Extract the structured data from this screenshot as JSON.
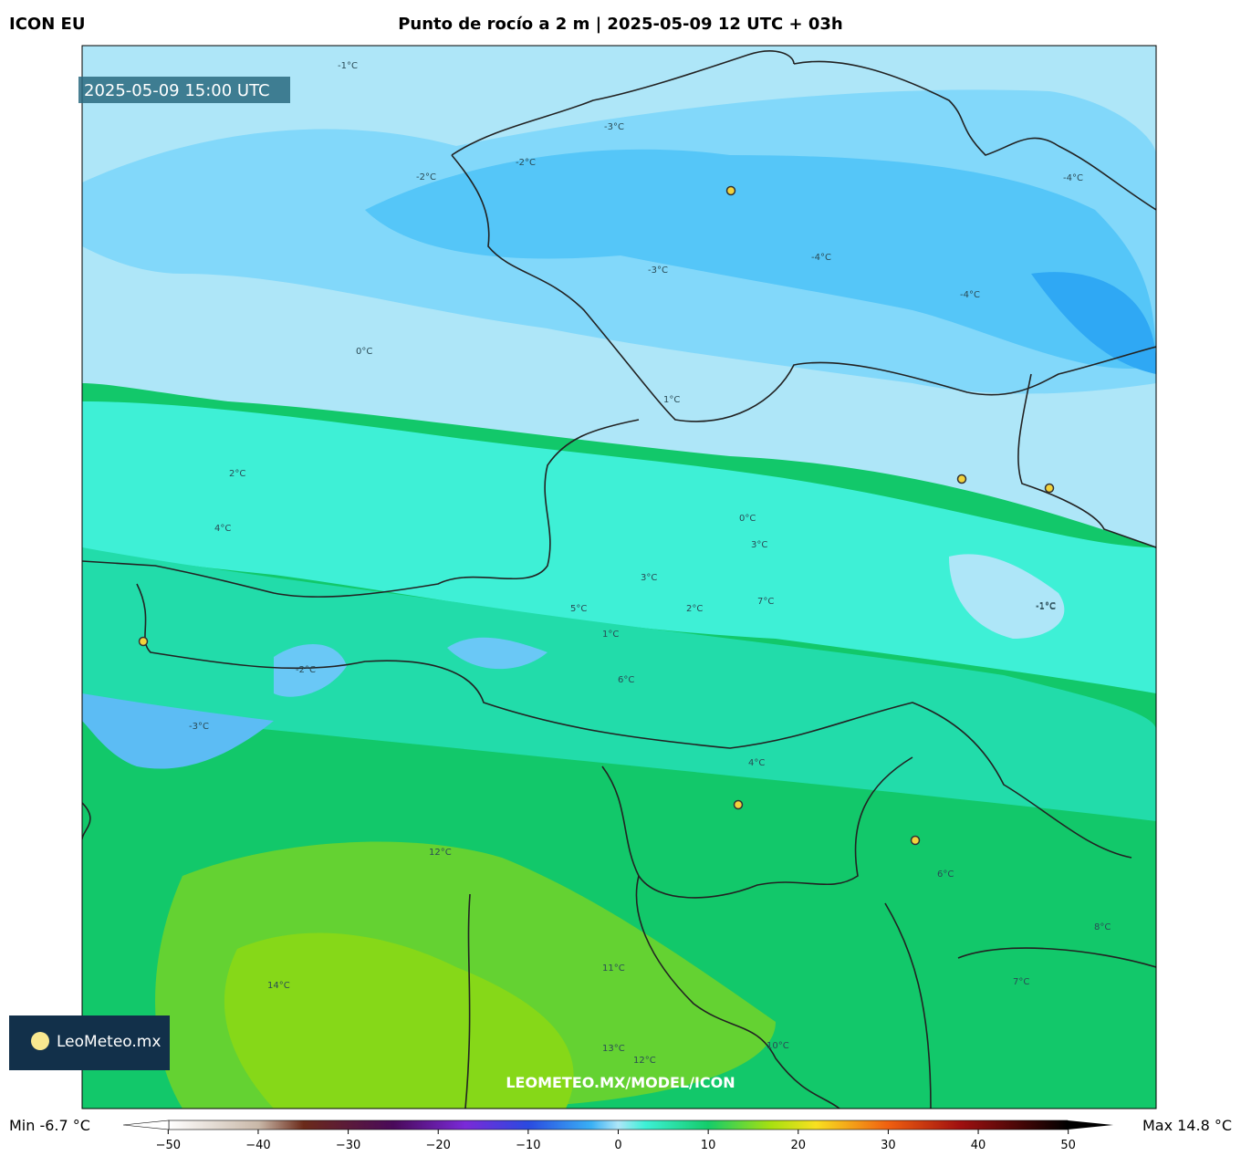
{
  "header": {
    "model": "ICON EU",
    "title": "Punto de rocío a 2 m | 2025-05-09 12 UTC + 03h"
  },
  "map": {
    "valid_time": "2025-05-09 15:00 UTC",
    "watermark": "LEOMETEO.MX/MODEL/ICON",
    "logo": "LeoMeteo.mx",
    "contour_labels": [
      "-1°C",
      "-2°C",
      "-3°C",
      "-3°C",
      "-4°C",
      "-4°C",
      "-4°C",
      "-2°C",
      "0°C",
      "1°C",
      "0°C",
      "-1°C",
      "2°C",
      "4°C",
      "3°C",
      "2°C",
      "3°C",
      "5°C",
      "7°C",
      "-3°C",
      "-2°C",
      "6°C",
      "4°C",
      "12°C",
      "11°C",
      "14°C",
      "13°C",
      "12°C",
      "10°C",
      "8°C",
      "7°C",
      "6°C",
      "1°C",
      "-1°C"
    ]
  },
  "colorbar": {
    "min_label": "Min -6.7 °C",
    "max_label": "Max 14.8 °C",
    "range": [
      -55,
      55
    ],
    "ticks": [
      {
        "value": -50,
        "label": "−50"
      },
      {
        "value": -40,
        "label": "−40"
      },
      {
        "value": -30,
        "label": "−30"
      },
      {
        "value": -20,
        "label": "−20"
      },
      {
        "value": -10,
        "label": "−10"
      },
      0,
      10,
      20,
      30,
      40,
      50
    ]
  }
}
